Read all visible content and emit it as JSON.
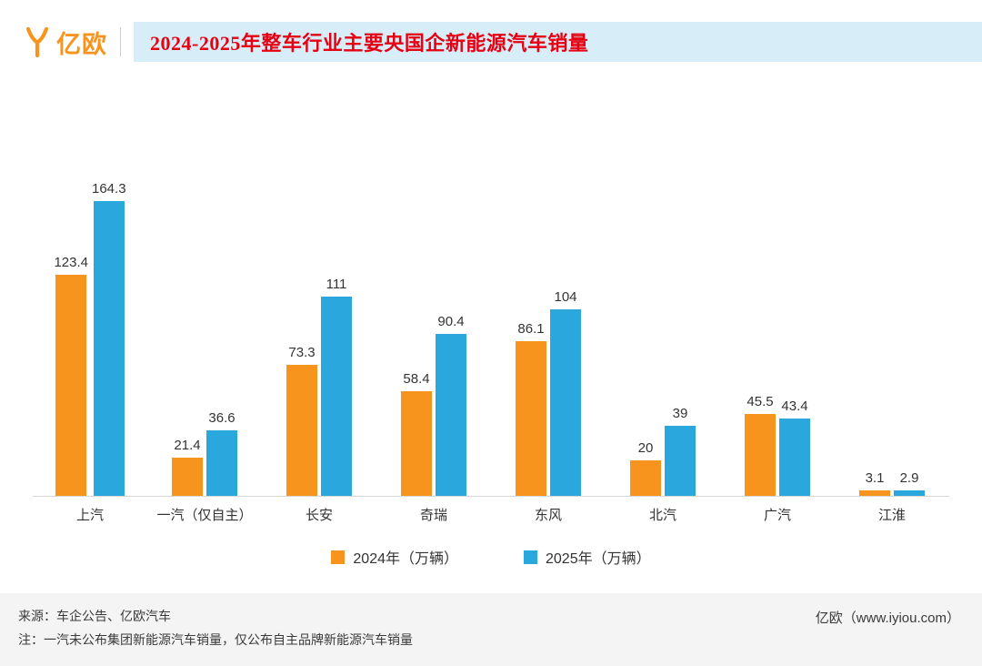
{
  "header": {
    "logo_text": "亿欧",
    "title": "2024-2025年整车行业主要央国企新能源汽车销量"
  },
  "chart_data": {
    "type": "bar",
    "title": "2024-2025年整车行业主要央国企新能源汽车销量",
    "categories": [
      "上汽",
      "一汽（仅自主）",
      "长安",
      "奇瑞",
      "东风",
      "北汽",
      "广汽",
      "江淮"
    ],
    "series": [
      {
        "name": "2024年（万辆）",
        "color": "#F7941E",
        "values": [
          123.4,
          21.4,
          73.3,
          58.4,
          86.1,
          20,
          45.5,
          3.1
        ]
      },
      {
        "name": "2025年（万辆）",
        "color": "#2AA7DC",
        "values": [
          164.3,
          36.6,
          111,
          90.4,
          104,
          39,
          43.4,
          2.9
        ]
      }
    ],
    "xlabel": "",
    "ylabel": "",
    "ylim": [
      0,
      170
    ],
    "grid": false,
    "legend_position": "bottom"
  },
  "footer": {
    "source": "来源：车企公告、亿欧汽车",
    "note": "注：一汽未公布集团新能源汽车销量，仅公布自主品牌新能源汽车销量",
    "site": "亿欧（www.iyiou.com）"
  },
  "colors": {
    "accent_orange": "#F7941E",
    "accent_blue": "#2AA7DC",
    "title_red": "#E60012",
    "header_bg": "#D7EDF8",
    "axis_line": "#D8D8D8",
    "footer_bg": "#F4F4F4"
  }
}
